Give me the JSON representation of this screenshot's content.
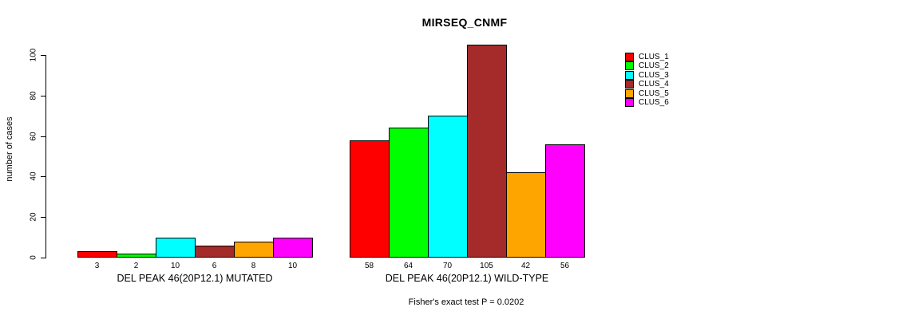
{
  "title": "MIRSEQ_CNMF",
  "footer": "Fisher's exact test P = 0.0202",
  "y_axis": {
    "label": "number of cases",
    "ticks": [
      0,
      20,
      40,
      60,
      80,
      100
    ]
  },
  "legend": {
    "position": "right",
    "entries": [
      {
        "label": "CLUS_1",
        "color": "#FF0000"
      },
      {
        "label": "CLUS_2",
        "color": "#00FF00"
      },
      {
        "label": "CLUS_3",
        "color": "#00FFFF"
      },
      {
        "label": "CLUS_4",
        "color": "#A52A2A"
      },
      {
        "label": "CLUS_5",
        "color": "#FFA500"
      },
      {
        "label": "CLUS_6",
        "color": "#FF00FF"
      }
    ]
  },
  "chart_data": {
    "type": "bar",
    "title": "MIRSEQ_CNMF",
    "xlabel": "",
    "ylabel": "number of cases",
    "ylim": [
      0,
      100
    ],
    "yticks": [
      0,
      20,
      40,
      60,
      80,
      100
    ],
    "grid": false,
    "legend_position": "right",
    "annotation": "Fisher's exact test P = 0.0202",
    "colors": [
      "#FF0000",
      "#00FF00",
      "#00FFFF",
      "#A52A2A",
      "#FFA500",
      "#FF00FF"
    ],
    "series": [
      {
        "name": "CLUS_1",
        "color": "#FF0000",
        "values": [
          3,
          58
        ]
      },
      {
        "name": "CLUS_2",
        "color": "#00FF00",
        "values": [
          2,
          64
        ]
      },
      {
        "name": "CLUS_3",
        "color": "#00FFFF",
        "values": [
          10,
          70
        ]
      },
      {
        "name": "CLUS_4",
        "color": "#A52A2A",
        "values": [
          6,
          105
        ]
      },
      {
        "name": "CLUS_5",
        "color": "#FFA500",
        "values": [
          8,
          42
        ]
      },
      {
        "name": "CLUS_6",
        "color": "#FF00FF",
        "values": [
          10,
          56
        ]
      }
    ],
    "groups": [
      {
        "label": "DEL PEAK 46(20P12.1) MUTATED",
        "values": [
          3,
          2,
          10,
          6,
          8,
          10
        ]
      },
      {
        "label": "DEL PEAK 46(20P12.1) WILD-TYPE",
        "values": [
          58,
          64,
          70,
          105,
          42,
          56
        ]
      }
    ]
  }
}
